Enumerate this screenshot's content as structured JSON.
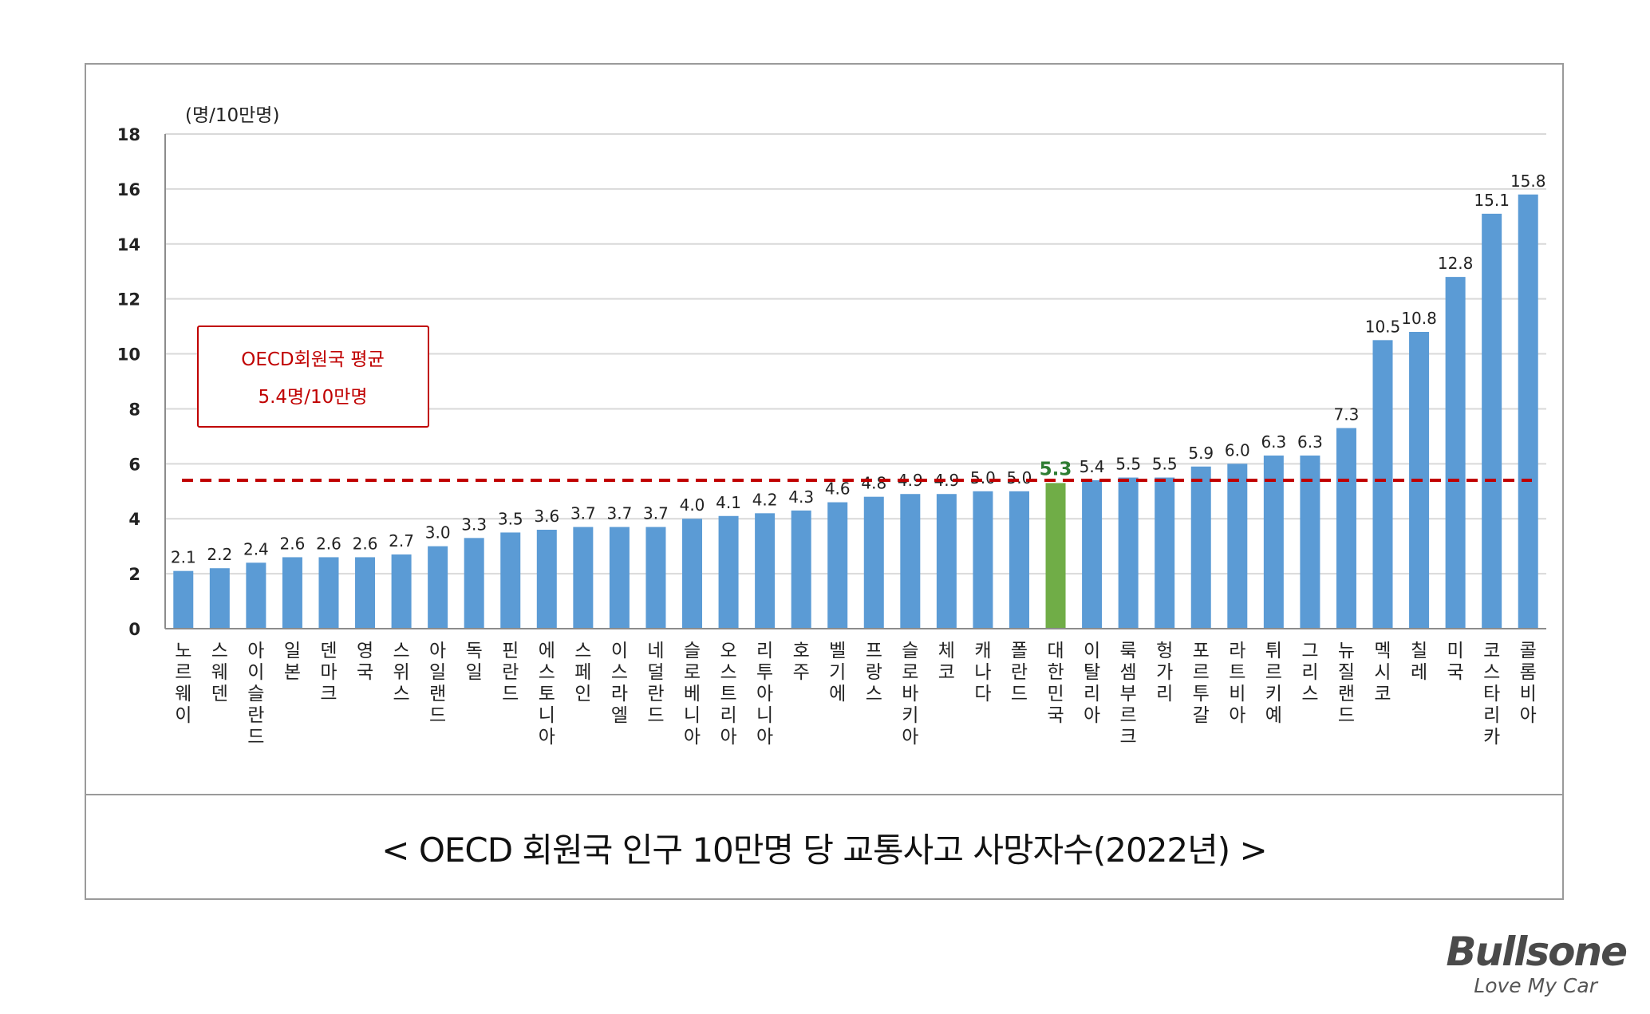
{
  "chart_data": {
    "type": "bar",
    "title": "< OECD 회원국 인구 10만명 당 교통사고 사망자수(2022년) >",
    "ylabel": "(명/10만명)",
    "ylim": [
      0,
      18
    ],
    "yticks": [
      0,
      2,
      4,
      6,
      8,
      10,
      12,
      14,
      16,
      18
    ],
    "grid": true,
    "categories": [
      "노르웨이",
      "스웨덴",
      "아이슬란드",
      "일본",
      "덴마크",
      "영국",
      "스위스",
      "아일랜드",
      "독일",
      "핀란드",
      "에스토니아",
      "스페인",
      "이스라엘",
      "네덜란드",
      "슬로베니아",
      "오스트리아",
      "리투아니아",
      "호주",
      "벨기에",
      "프랑스",
      "슬로바키아",
      "체코",
      "캐나다",
      "폴란드",
      "대한민국",
      "이탈리아",
      "룩셈부르크",
      "헝가리",
      "포르투갈",
      "라트비아",
      "튀르키예",
      "그리스",
      "뉴질랜드",
      "멕시코",
      "칠레",
      "미국",
      "코스타리카",
      "콜롬비아"
    ],
    "values": [
      2.1,
      2.2,
      2.4,
      2.6,
      2.6,
      2.6,
      2.7,
      3.0,
      3.3,
      3.5,
      3.6,
      3.7,
      3.7,
      3.7,
      4.0,
      4.1,
      4.2,
      4.3,
      4.6,
      4.8,
      4.9,
      4.9,
      5.0,
      5.0,
      5.3,
      5.4,
      5.5,
      5.5,
      5.9,
      6.0,
      6.3,
      6.3,
      7.3,
      10.5,
      10.8,
      12.8,
      15.1,
      15.8
    ],
    "highlight_category": "대한민국",
    "colors": {
      "bar": "#5b9bd5",
      "highlight": "#70ad47",
      "highlight_label": "#2e7d32",
      "average_line": "#c00000",
      "grid": "#d9d9d9"
    },
    "reference_line": {
      "value": 5.4,
      "style": "dashed",
      "annotation": [
        "OECD회원국 평균",
        "5.4명/10만명"
      ]
    }
  },
  "logo": {
    "name": "Bullsone",
    "tagline": "Love My Car"
  }
}
